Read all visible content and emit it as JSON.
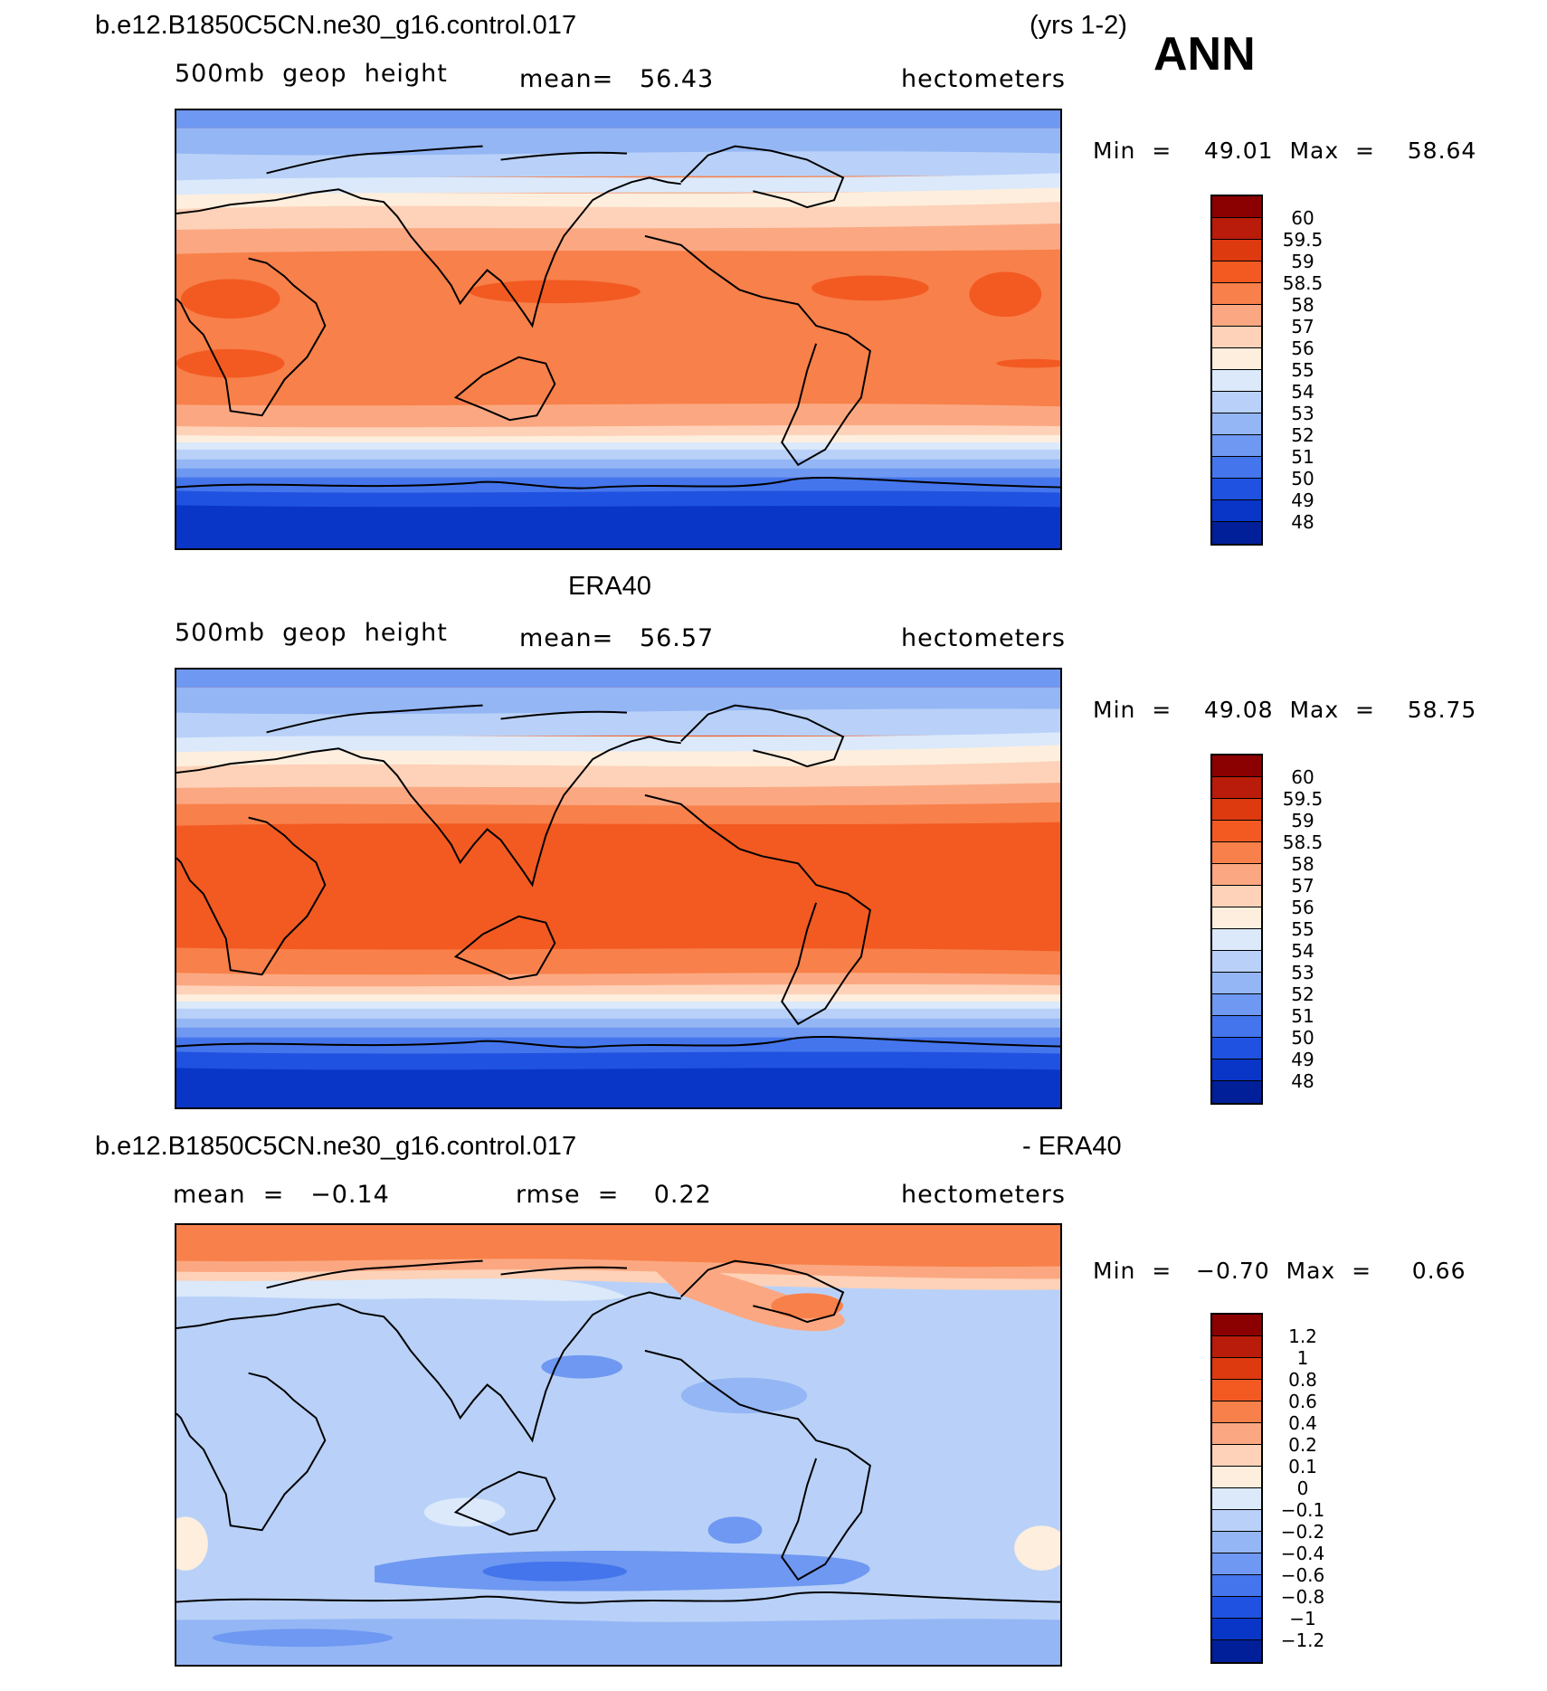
{
  "header": {
    "case": "b.e12.B1850C5CN.ne30_g16.control.017",
    "years": "(yrs 1-2)",
    "season": "ANN"
  },
  "panels": [
    {
      "id": "model",
      "title": "",
      "left_label": "500mb  geop  height",
      "center_label": "mean=   56.43",
      "right_label": "hectometers",
      "minmax": "Min  =    49.01  Max  =    58.64",
      "levels": [
        "60",
        "59.5",
        "59",
        "58.5",
        "58",
        "57",
        "56",
        "55",
        "54",
        "53",
        "52",
        "51",
        "50",
        "49",
        "48"
      ],
      "colors": [
        "#8b0000",
        "#b91c0a",
        "#dd3a10",
        "#f25a22",
        "#f8804a",
        "#fba882",
        "#fdd2b8",
        "#fdeedd",
        "#dbe9fb",
        "#b9d1f8",
        "#94b6f5",
        "#6e98f1",
        "#4475ec",
        "#1f52e0",
        "#0a36c8",
        "#001f99"
      ]
    },
    {
      "id": "obs",
      "title": "ERA40",
      "left_label": "500mb  geop  height",
      "center_label": "mean=   56.57",
      "right_label": "hectometers",
      "minmax": "Min  =    49.08  Max  =    58.75",
      "levels": [
        "60",
        "59.5",
        "59",
        "58.5",
        "58",
        "57",
        "56",
        "55",
        "54",
        "53",
        "52",
        "51",
        "50",
        "49",
        "48"
      ],
      "colors": [
        "#8b0000",
        "#b91c0a",
        "#dd3a10",
        "#f25a22",
        "#f8804a",
        "#fba882",
        "#fdd2b8",
        "#fdeedd",
        "#dbe9fb",
        "#b9d1f8",
        "#94b6f5",
        "#6e98f1",
        "#4475ec",
        "#1f52e0",
        "#0a36c8",
        "#001f99"
      ]
    },
    {
      "id": "diff",
      "title": "b.e12.B1850C5CN.ne30_g16.control.017",
      "title_right": "- ERA40",
      "left_label": "mean  =   −0.14",
      "center_label": "rmse  =    0.22",
      "right_label": "hectometers",
      "minmax": "Min  =   −0.70  Max  =     0.66",
      "levels": [
        "1.2",
        "1",
        "0.8",
        "0.6",
        "0.4",
        "0.2",
        "0.1",
        "0",
        "−0.1",
        "−0.2",
        "−0.4",
        "−0.6",
        "−0.8",
        "−1",
        "−1.2"
      ],
      "colors": [
        "#8b0000",
        "#b91c0a",
        "#dd3a10",
        "#f25a22",
        "#f8804a",
        "#fba882",
        "#fdd2b8",
        "#fdeedd",
        "#dbe9fb",
        "#b9d1f8",
        "#94b6f5",
        "#6e98f1",
        "#4475ec",
        "#1f52e0",
        "#0a36c8",
        "#001f99"
      ]
    }
  ]
}
